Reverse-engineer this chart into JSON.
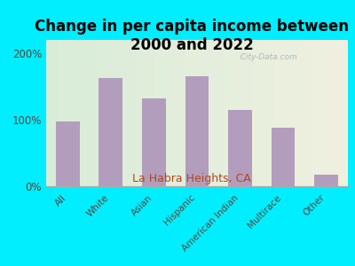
{
  "title": "Change in per capita income between\n2000 and 2022",
  "subtitle": "La Habra Heights, CA",
  "categories": [
    "All",
    "White",
    "Asian",
    "Hispanic",
    "American Indian",
    "Multirace",
    "Other"
  ],
  "values": [
    97,
    162,
    132,
    165,
    115,
    88,
    18
  ],
  "bar_color": "#b39dbd",
  "title_fontsize": 12,
  "subtitle_fontsize": 9,
  "subtitle_color": "#b5451b",
  "ylim": [
    0,
    220
  ],
  "yticks": [
    0,
    100,
    200
  ],
  "ytick_labels": [
    "0%",
    "100%",
    "200%"
  ],
  "background_outer": "#00eeff",
  "watermark": "  City-Data.com",
  "watermark_color": "#a0b8b8",
  "tick_label_color": "#5d4037",
  "axis_label_fontsize": 7.5
}
